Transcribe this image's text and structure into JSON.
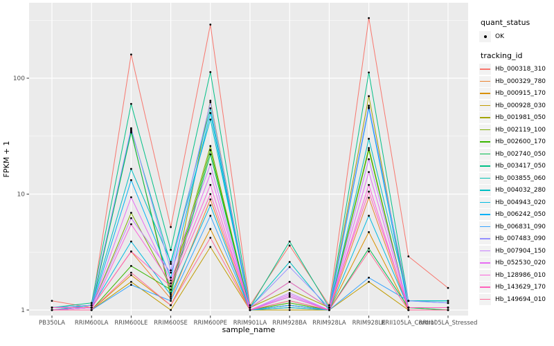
{
  "figure": {
    "background": "#FFFFFF",
    "panel_background": "#EBEBEB",
    "gridline_color": "#FFFFFF",
    "tick_color": "#333333",
    "tick_label_color": "#4D4D4D",
    "axis_title_color": "#000000",
    "marker_color": "#000000"
  },
  "legend": {
    "quant_status_title": "quant_status",
    "ok_label": "OK",
    "tracking_id_title": "tracking_id",
    "key_background": "#F2F2F2"
  },
  "chart_data": {
    "type": "line",
    "title": "",
    "xlabel": "sample_name",
    "ylabel": "FPKM + 1",
    "y_scale": "log10",
    "y_ticks": [
      1,
      10,
      100
    ],
    "y_minor_ticks": [
      3.162,
      31.623,
      316.228
    ],
    "ylim": [
      0.9,
      435
    ],
    "grid": true,
    "legend_position": "right",
    "quant_status_value": "OK",
    "categories": [
      "PB350LA",
      "RRIM600LA",
      "RRIM600LE",
      "RRIM600SE",
      "RRIM600PE",
      "RRIM901LA",
      "RRIM928BA",
      "RRIM928LA",
      "RRIM928LE",
      "RRII105LA_Control",
      "RRII105LA_Stressed"
    ],
    "series": [
      {
        "name": "Hb_000318_310",
        "color": "#F8766D",
        "values": [
          1.2,
          1.05,
          160,
          5.2,
          290,
          1.1,
          3.6,
          1.1,
          330,
          2.9,
          1.55
        ]
      },
      {
        "name": "Hb_000329_780",
        "color": "#EA8331",
        "values": [
          1.0,
          1.05,
          3.2,
          1.25,
          9,
          1.0,
          1.1,
          1.0,
          9.3,
          1.0,
          1.0
        ]
      },
      {
        "name": "Hb_000915_170",
        "color": "#D89000",
        "values": [
          1.0,
          1.0,
          2.0,
          1.1,
          5,
          1.0,
          1.05,
          1.0,
          4.7,
          1.0,
          1.0
        ]
      },
      {
        "name": "Hb_000928_030",
        "color": "#C09B00",
        "values": [
          1.0,
          1.0,
          1.75,
          1.0,
          3.5,
          1.0,
          1.0,
          1.0,
          1.75,
          1.0,
          1.0
        ]
      },
      {
        "name": "Hb_001981_050",
        "color": "#A3A500",
        "values": [
          1.0,
          1.1,
          35,
          1.3,
          64,
          1.05,
          1.5,
          1.05,
          70,
          1.05,
          1.0
        ]
      },
      {
        "name": "Hb_002119_100",
        "color": "#7CAE00",
        "values": [
          1.0,
          1.05,
          6.9,
          1.6,
          26,
          1.0,
          1.2,
          1.0,
          25,
          1.0,
          1.0
        ]
      },
      {
        "name": "Hb_002600_170",
        "color": "#39B600",
        "values": [
          1.0,
          1.0,
          2.4,
          1.5,
          24,
          1.0,
          1.15,
          1.0,
          24,
          1.0,
          1.0
        ]
      },
      {
        "name": "Hb_002740_050",
        "color": "#00BB4E",
        "values": [
          1.0,
          1.05,
          34,
          1.4,
          22,
          1.0,
          1.1,
          1.0,
          3.4,
          1.05,
          1.0
        ]
      },
      {
        "name": "Hb_003417_050",
        "color": "#00C087",
        "values": [
          1.05,
          1.15,
          60,
          3.3,
          113,
          1.05,
          3.9,
          1.05,
          112,
          1.2,
          1.2
        ]
      },
      {
        "name": "Hb_003855_060",
        "color": "#00C0B2",
        "values": [
          1.05,
          1.1,
          36,
          2.5,
          55,
          1.05,
          1.75,
          1.05,
          56,
          1.2,
          1.2
        ]
      },
      {
        "name": "Hb_004032_280",
        "color": "#00BFC4",
        "values": [
          1.0,
          1.1,
          16.5,
          2.6,
          44,
          1.05,
          2.6,
          1.0,
          30,
          1.2,
          1.2
        ]
      },
      {
        "name": "Hb_004943_020",
        "color": "#00BAE0",
        "values": [
          1.0,
          1.05,
          3.9,
          1.35,
          8,
          1.0,
          1.05,
          1.0,
          6.5,
          1.05,
          1.05
        ]
      },
      {
        "name": "Hb_006242_050",
        "color": "#00B0F6",
        "values": [
          1.0,
          1.05,
          13.2,
          1.9,
          50,
          1.0,
          1.3,
          1.0,
          55,
          1.05,
          1.05
        ]
      },
      {
        "name": "Hb_006831_090",
        "color": "#35A2FF",
        "values": [
          1.0,
          1.0,
          1.65,
          1.2,
          6.5,
          1.0,
          1.1,
          1.0,
          1.9,
          1.2,
          1.15
        ]
      },
      {
        "name": "Hb_007483_090",
        "color": "#9590FF",
        "values": [
          1.05,
          1.1,
          37,
          2.2,
          62,
          1.05,
          2.35,
          1.05,
          58,
          1.2,
          1.15
        ]
      },
      {
        "name": "Hb_007904_150",
        "color": "#C77CFF",
        "values": [
          1.0,
          1.05,
          6.2,
          2.1,
          18,
          1.0,
          1.4,
          1.0,
          20,
          1.05,
          1.05
        ]
      },
      {
        "name": "Hb_052530_020",
        "color": "#E76BF3",
        "values": [
          1.0,
          1.05,
          9.4,
          1.8,
          15,
          1.0,
          1.35,
          1.0,
          15.5,
          1.05,
          1.05
        ]
      },
      {
        "name": "Hb_128986_010",
        "color": "#FA62DB",
        "values": [
          1.0,
          1.0,
          5.5,
          1.7,
          12,
          1.0,
          1.3,
          1.0,
          12,
          1.0,
          1.0
        ]
      },
      {
        "name": "Hb_143629_170",
        "color": "#FF62BC",
        "values": [
          1.05,
          1.05,
          3.2,
          1.6,
          10,
          1.05,
          1.75,
          1.05,
          10.5,
          1.05,
          1.05
        ]
      },
      {
        "name": "Hb_149694_010",
        "color": "#FF6A98",
        "values": [
          1.0,
          1.0,
          2.1,
          1.1,
          4.2,
          1.0,
          1.2,
          1.0,
          3.2,
          1.0,
          1.0
        ]
      }
    ]
  }
}
